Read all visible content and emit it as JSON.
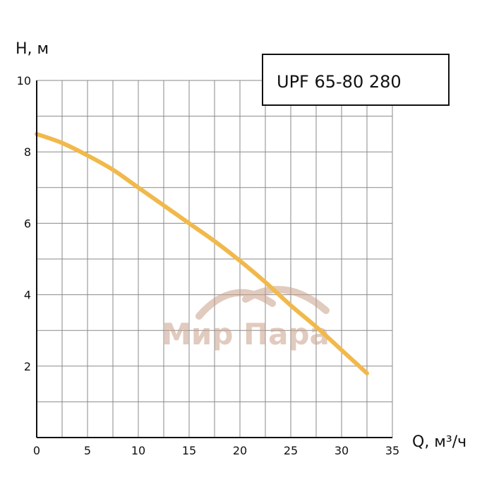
{
  "chart_data": {
    "type": "line",
    "model_label": "UPF 65-80 280",
    "ylabel": "H, м",
    "xlabel": "Q, м³/ч",
    "xlim": [
      0,
      35
    ],
    "ylim": [
      0,
      10
    ],
    "x_ticks": [
      0,
      5,
      10,
      15,
      20,
      25,
      30,
      35
    ],
    "y_ticks": [
      2,
      4,
      6,
      8,
      10
    ],
    "grid": true,
    "series": [
      {
        "color": "#F1B94B",
        "x": [
          0,
          2.5,
          5,
          7.5,
          10,
          12.5,
          15,
          17.5,
          20,
          22.5,
          25,
          27.5,
          30,
          32.5
        ],
        "y": [
          8.5,
          8.25,
          7.9,
          7.5,
          7.0,
          6.5,
          6.0,
          5.5,
          4.95,
          4.35,
          3.7,
          3.1,
          2.45,
          1.8
        ]
      }
    ]
  },
  "watermark": {
    "text": "Мир Пара",
    "color": "#C9A08A"
  }
}
